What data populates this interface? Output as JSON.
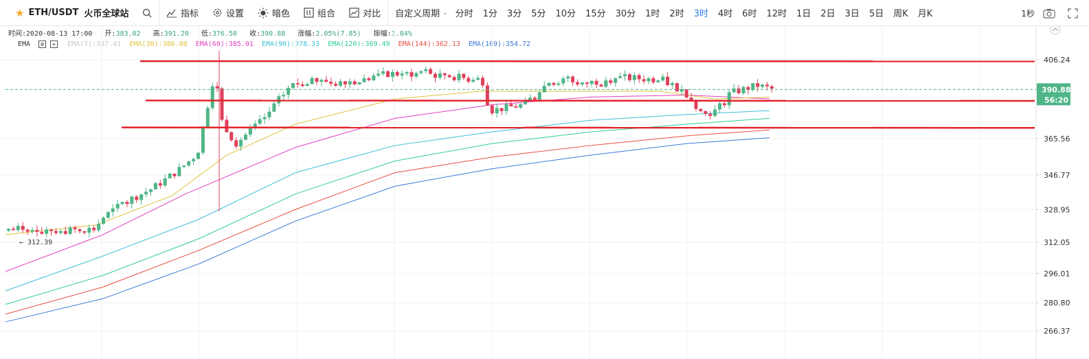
{
  "toolbar": {
    "symbol": "ETH/USDT",
    "exchange": "火币全球站",
    "buttons": {
      "indicators": "指标",
      "settings": "设置",
      "dark": "暗色",
      "combine": "组合",
      "compare": "对比"
    },
    "custom_period": "自定义周期",
    "periods": [
      "分时",
      "1分",
      "3分",
      "5分",
      "10分",
      "15分",
      "30分",
      "1时",
      "2时",
      "3时",
      "4时",
      "6时",
      "12时",
      "1日",
      "2日",
      "3日",
      "5日",
      "周K",
      "月K"
    ],
    "active_period": "3时",
    "interval": "1秒"
  },
  "ohlc": {
    "time_label": "时间:",
    "time": "2020-08-13 17:00",
    "open_label": "开:",
    "open": "383.02",
    "high_label": "高:",
    "high": "391.20",
    "low_label": "低:",
    "low": "376.50",
    "close_label": "收:",
    "close": "390.88",
    "change_label": "涨幅:",
    "change": "2.05%(7.85)",
    "amplitude_label": "振幅:",
    "amplitude": "3.84%"
  },
  "ema_legend": {
    "label": "EMA",
    "items": [
      {
        "text": "EMA(7):387.41",
        "color": "#c8c8c8"
      },
      {
        "text": "EMA(30):386.80",
        "color": "#e0c23c"
      },
      {
        "text": "EMA(60):385.01",
        "color": "#e040c0"
      },
      {
        "text": "EMA(90):378.33",
        "color": "#3cbfd6"
      },
      {
        "text": "EMA(120):369.49",
        "color": "#2ecc9a"
      },
      {
        "text": "EMA(144):362.13",
        "color": "#e84c3d"
      },
      {
        "text": "EMA(169):354.72",
        "color": "#3a78d8"
      }
    ]
  },
  "price_axis": {
    "ticks": [
      "406.24",
      "365.56",
      "346.77",
      "328.95",
      "312.05",
      "296.01",
      "280.80",
      "266.37"
    ],
    "current_price": "390.88",
    "countdown": "56:20",
    "current_price_bg": "#4fb587"
  },
  "annotations": {
    "low_marker": "← 312.39"
  },
  "colors": {
    "up": "#4fb587",
    "down": "#e0405a",
    "hline": "#e3232c",
    "active": "#2f7be6"
  }
}
